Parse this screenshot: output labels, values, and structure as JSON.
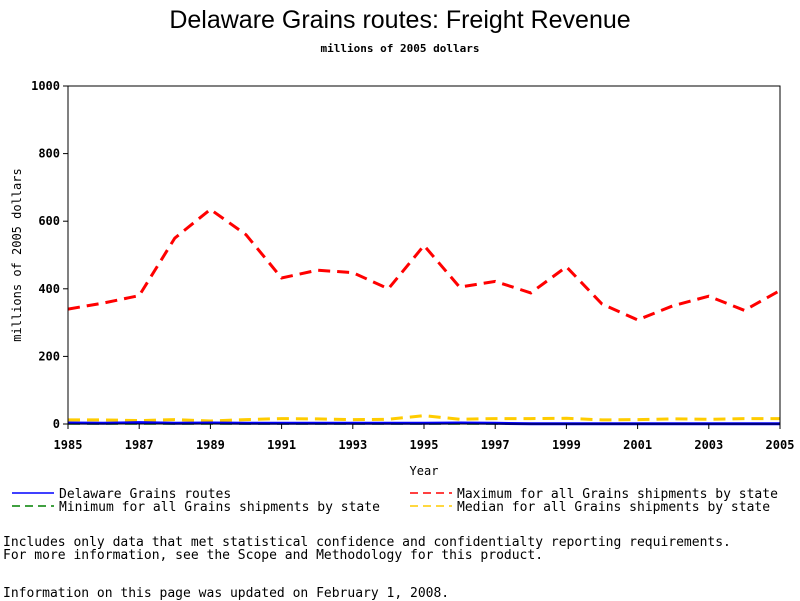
{
  "chart_data": {
    "type": "line",
    "title": "Delaware Grains routes: Freight Revenue",
    "subtitle": "millions of 2005 dollars",
    "xlabel": "Year",
    "ylabel": "millions of 2005 dollars",
    "xlim": [
      1985,
      2005
    ],
    "ylim": [
      0,
      1000
    ],
    "x_ticks": [
      1985,
      1987,
      1989,
      1991,
      1993,
      1995,
      1997,
      1999,
      2001,
      2003,
      2005
    ],
    "y_ticks": [
      0,
      200,
      400,
      600,
      800,
      1000
    ],
    "x": [
      1985,
      1986,
      1987,
      1988,
      1989,
      1990,
      1991,
      1992,
      1993,
      1994,
      1995,
      1996,
      1997,
      1998,
      1999,
      2000,
      2001,
      2002,
      2003,
      2004,
      2005
    ],
    "series": [
      {
        "name": "Delaware Grains routes",
        "color": "#0000ff",
        "dash": "solid",
        "values": [
          3,
          2,
          4,
          2,
          3,
          2,
          2,
          2,
          2,
          2,
          2,
          3,
          2,
          1,
          1,
          1,
          1,
          1,
          1,
          1,
          1
        ]
      },
      {
        "name": "Minimum for all Grains shipments by state",
        "color": "#008000",
        "dash": "dashed",
        "values": [
          1,
          1,
          1,
          1,
          1,
          1,
          1,
          1,
          1,
          1,
          1,
          1,
          1,
          1,
          1,
          1,
          1,
          1,
          1,
          1,
          1
        ]
      },
      {
        "name": "Maximum for all Grains shipments by state",
        "color": "#ff0000",
        "dash": "dashed",
        "values": [
          340,
          358,
          380,
          550,
          635,
          560,
          432,
          455,
          448,
          400,
          528,
          405,
          422,
          388,
          465,
          355,
          308,
          350,
          378,
          336,
          395
        ]
      },
      {
        "name": "Median for all Grains shipments by state",
        "color": "#ffcc00",
        "dash": "dashed",
        "values": [
          12,
          12,
          10,
          13,
          9,
          13,
          16,
          15,
          13,
          14,
          25,
          14,
          16,
          16,
          17,
          12,
          13,
          15,
          14,
          16,
          16
        ]
      }
    ],
    "grid": false,
    "legend_position": "bottom"
  },
  "footnote": {
    "line1": "Includes only data that met statistical confidence and confidentialty reporting requirements.",
    "line2": "For more information, see the Scope and Methodology for this product.",
    "line3": "Information on this page was updated on February 1, 2008."
  }
}
